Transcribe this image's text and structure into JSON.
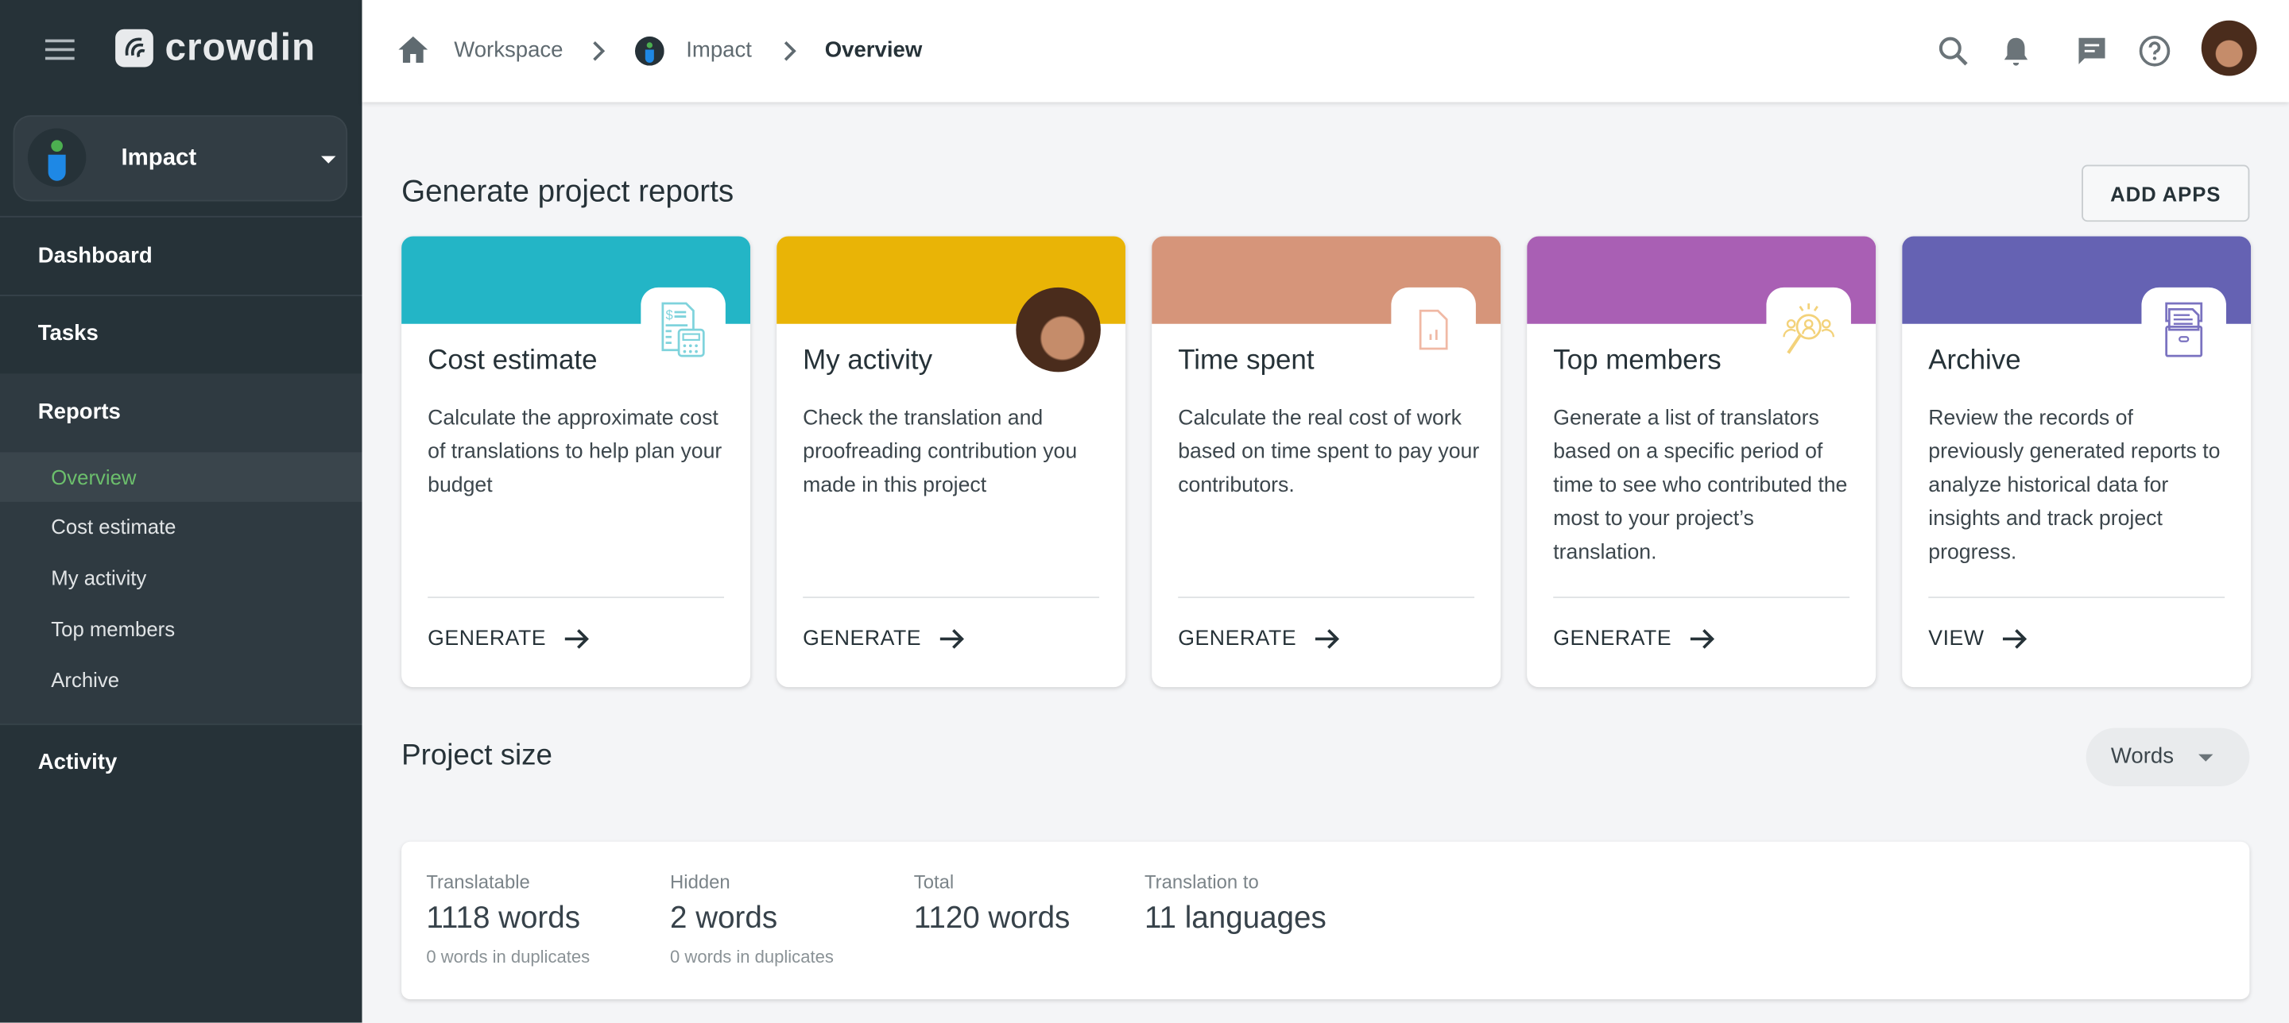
{
  "brand": {
    "name": "crowdin"
  },
  "project": {
    "name": "Impact"
  },
  "sidebar": {
    "items": [
      {
        "label": "Dashboard"
      },
      {
        "label": "Tasks"
      },
      {
        "label": "Reports"
      },
      {
        "label": "Activity"
      }
    ],
    "reports_sub": [
      {
        "label": "Overview",
        "active": true
      },
      {
        "label": "Cost estimate"
      },
      {
        "label": "My activity"
      },
      {
        "label": "Top members"
      },
      {
        "label": "Archive"
      }
    ]
  },
  "breadcrumb": [
    {
      "label": "Workspace"
    },
    {
      "label": "Impact"
    },
    {
      "label": "Overview"
    }
  ],
  "header_icons": [
    "search-icon",
    "bell-icon",
    "chat-icon",
    "help-icon",
    "avatar"
  ],
  "main": {
    "title": "Generate project reports",
    "add_apps": "ADD APPS",
    "cards": [
      {
        "title": "Cost estimate",
        "desc": "Calculate the approximate cost of translations to help plan your budget",
        "action": "GENERATE",
        "color": "#23b5c6",
        "icon": "calculator-invoice-icon"
      },
      {
        "title": "My activity",
        "desc": "Check the translation and proofreading contribution you made in this project",
        "action": "GENERATE",
        "color": "#e9b406",
        "icon": "user-avatar"
      },
      {
        "title": "Time spent",
        "desc": "Calculate the real cost of work based on time spent to pay your contributors.",
        "action": "GENERATE",
        "color": "#d6957a",
        "icon": "document-chart-icon"
      },
      {
        "title": "Top members",
        "desc": "Generate a list of translators based on a specific period of time to see who contributed the most to your project’s translation.",
        "action": "GENERATE",
        "color": "#a95fb4",
        "icon": "people-search-icon"
      },
      {
        "title": "Archive",
        "desc": "Review the records of previously generated reports to analyze historical data for insights and track project progress.",
        "action": "VIEW",
        "color": "#6562b3",
        "icon": "archive-box-icon"
      }
    ],
    "project_size": {
      "title": "Project size",
      "unit_select": "Words",
      "stats": [
        {
          "label": "Translatable",
          "value": "1118 words",
          "sub": "0 words in duplicates"
        },
        {
          "label": "Hidden",
          "value": "2 words",
          "sub": "0 words in duplicates"
        },
        {
          "label": "Total",
          "value": "1120 words",
          "sub": ""
        },
        {
          "label": "Translation to",
          "value": "11 languages",
          "sub": ""
        }
      ]
    }
  },
  "colors": {
    "sidebar": "#263238",
    "active_green": "#6cbf6c",
    "background": "#f4f5f7"
  }
}
